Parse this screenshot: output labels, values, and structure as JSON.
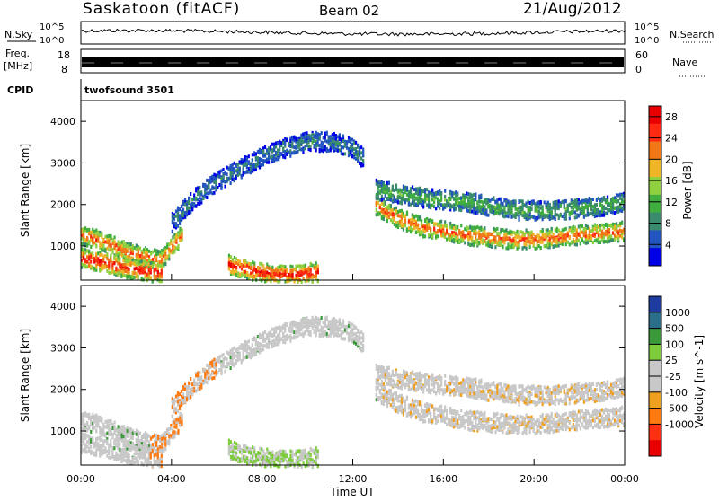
{
  "header": {
    "station": "Saskatoon (fitACF)",
    "beam": "Beam 02",
    "date": "21/Aug/2012"
  },
  "noise_panel": {
    "left_label": "N.Sky",
    "right_label": "N.Search",
    "top_tick": "10^5",
    "bottom_tick": "10^0"
  },
  "freq_panel": {
    "left_label_1": "Freq.",
    "left_label_2": "[MHz]",
    "right_label": "Nave",
    "left_ticks": [
      "18",
      "8"
    ],
    "right_ticks": [
      "60",
      "0"
    ]
  },
  "cpid": {
    "label": "CPID",
    "value": "twofsound 3501"
  },
  "chart_data": [
    {
      "type": "heatmap",
      "title": "",
      "xlabel": "Time UT",
      "ylabel": "Slant Range [km]",
      "x_ticks": [
        "00:00",
        "04:00",
        "08:00",
        "12:00",
        "16:00",
        "20:00",
        "00:00"
      ],
      "xlim": [
        0,
        24
      ],
      "ylim": [
        180,
        4500
      ],
      "y_ticks": [
        1000,
        2000,
        3000,
        4000
      ],
      "colorbar": {
        "label": "Power [dB]",
        "ticks": [
          4,
          8,
          12,
          16,
          20,
          24,
          28
        ],
        "range": [
          0,
          30
        ],
        "colors": [
          "#0000e6",
          "#2255c0",
          "#3a8a6e",
          "#3fae3f",
          "#8fd040",
          "#f0b428",
          "#f07818",
          "#ff2a10",
          "#e80000"
        ]
      },
      "bands": [
        {
          "name": "lower-band",
          "x": [
            0,
            1,
            2,
            3,
            3.5,
            4.5
          ],
          "y": [
            1300,
            1150,
            900,
            750,
            700,
            1350
          ],
          "level": 24
        },
        {
          "name": "near-range-midnight",
          "x": [
            0,
            1,
            2,
            3,
            3.6
          ],
          "y": [
            750,
            650,
            500,
            420,
            380
          ],
          "level": 28
        },
        {
          "name": "near-range-day",
          "x": [
            6.5,
            7.5,
            8.5,
            9.5,
            10.5
          ],
          "y": [
            600,
            450,
            350,
            350,
            420
          ],
          "level": 28
        },
        {
          "name": "upper-arc",
          "x": [
            4,
            5,
            6,
            7,
            8,
            9,
            10,
            11,
            12,
            12.5
          ],
          "y": [
            1600,
            2200,
            2600,
            2900,
            3200,
            3400,
            3550,
            3550,
            3400,
            3100
          ],
          "level": 8
        },
        {
          "name": "morning-band",
          "x": [
            13,
            14,
            15,
            16,
            17,
            18,
            19,
            20,
            21,
            22,
            23,
            24
          ],
          "y": [
            2000,
            1700,
            1500,
            1400,
            1300,
            1250,
            1200,
            1200,
            1250,
            1300,
            1350,
            1400
          ],
          "level": 24
        },
        {
          "name": "morning-upper",
          "x": [
            13,
            15,
            17,
            19,
            21,
            23,
            24
          ],
          "y": [
            2400,
            2200,
            2100,
            1900,
            1900,
            2000,
            2100
          ],
          "level": 12
        }
      ]
    },
    {
      "type": "heatmap",
      "title": "",
      "xlabel": "Time UT",
      "ylabel": "Slant Range [km]",
      "x_ticks": [
        "00:00",
        "04:00",
        "08:00",
        "12:00",
        "16:00",
        "20:00",
        "00:00"
      ],
      "xlim": [
        0,
        24
      ],
      "ylim": [
        180,
        4500
      ],
      "y_ticks": [
        1000,
        2000,
        3000,
        4000
      ],
      "colorbar": {
        "label": "Velocity [m s^-1]",
        "ticks": [
          1000,
          500,
          100,
          25,
          -25,
          -100,
          -500,
          -1000
        ],
        "colors": [
          "#1e3ca0",
          "#2a6e8a",
          "#3a9a3a",
          "#7ccc3c",
          "#c8c8c8",
          "#c8c8c8",
          "#f0a020",
          "#ff7a10",
          "#ff3010",
          "#e80000"
        ]
      }
    }
  ]
}
